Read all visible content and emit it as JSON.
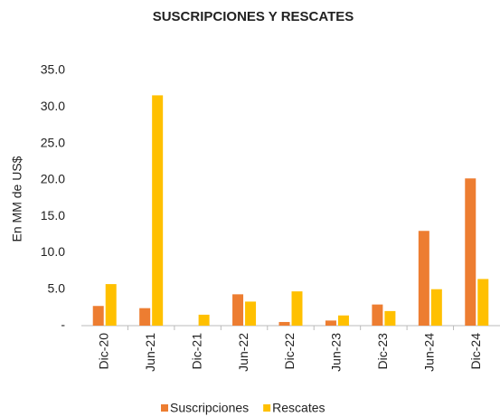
{
  "chart_data": {
    "type": "bar",
    "title": "SUSCRIPCIONES Y RESCATES",
    "y_label": "En MM de US$",
    "categories": [
      "Dic-20",
      "Jun-21",
      "Dic-21",
      "Jun-22",
      "Dic-22",
      "Jun-23",
      "Dic-23",
      "Jun-24",
      "Dic-24"
    ],
    "series": [
      {
        "name": "Suscripciones",
        "color": "#ed7d31",
        "values": [
          2.7,
          2.4,
          0,
          4.3,
          0.5,
          0.7,
          2.9,
          13.0,
          20.2
        ]
      },
      {
        "name": "Rescates",
        "color": "#ffc000",
        "values": [
          5.7,
          31.6,
          1.5,
          3.3,
          4.7,
          1.4,
          2.0,
          5.0,
          6.4
        ]
      }
    ],
    "ylim": [
      0,
      35
    ],
    "yticks": [
      {
        "value": 0,
        "label": "-"
      },
      {
        "value": 5,
        "label": "5.0"
      },
      {
        "value": 10,
        "label": "10.0"
      },
      {
        "value": 15,
        "label": "15.0"
      },
      {
        "value": 20,
        "label": "20.0"
      },
      {
        "value": 25,
        "label": "25.0"
      },
      {
        "value": 30,
        "label": "30.0"
      },
      {
        "value": 35,
        "label": "35.0"
      }
    ],
    "grid": false,
    "legend": "bottom"
  }
}
